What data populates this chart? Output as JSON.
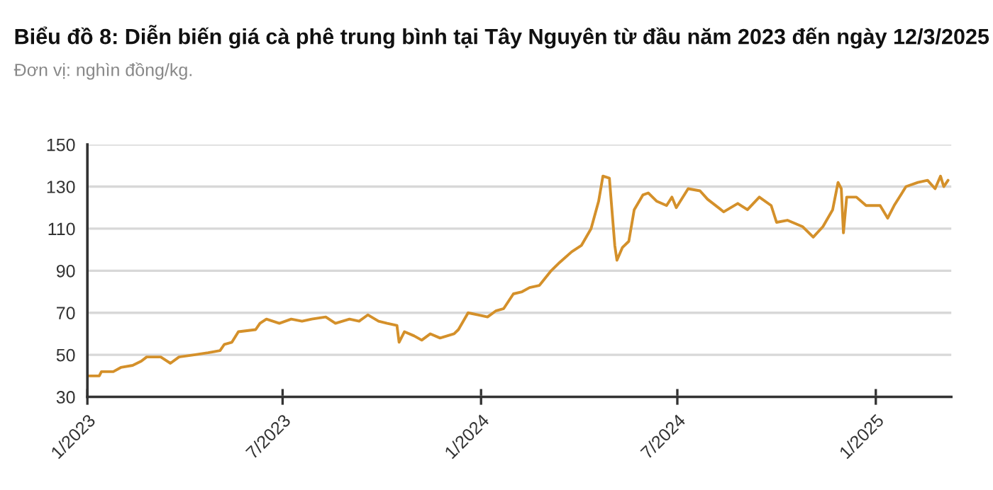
{
  "chart_data": {
    "type": "line",
    "title": "Biểu đồ 8: Diễn biến giá cà phê trung bình tại Tây Nguyên từ đầu năm 2023 đến ngày 12/3/2025",
    "subtitle": "Đơn vị: nghìn đồng/kg.",
    "x": [
      "2023-01-01",
      "2023-01-12",
      "2023-01-14",
      "2023-01-25",
      "2023-02-01",
      "2023-02-12",
      "2023-02-20",
      "2023-02-25",
      "2023-03-10",
      "2023-03-19",
      "2023-03-27",
      "2023-04-10",
      "2023-04-23",
      "2023-05-04",
      "2023-05-08",
      "2023-05-15",
      "2023-05-21",
      "2023-06-06",
      "2023-06-10",
      "2023-06-16",
      "2023-06-28",
      "2023-07-09",
      "2023-07-19",
      "2023-07-28",
      "2023-08-10",
      "2023-08-19",
      "2023-09-01",
      "2023-09-10",
      "2023-09-18",
      "2023-09-28",
      "2023-10-06",
      "2023-10-15",
      "2023-10-17",
      "2023-10-22",
      "2023-10-31",
      "2023-11-07",
      "2023-11-15",
      "2023-11-24",
      "2023-12-07",
      "2023-12-11",
      "2023-12-20",
      "2023-12-29",
      "2024-01-07",
      "2024-01-15",
      "2024-01-22",
      "2024-01-31",
      "2024-02-08",
      "2024-02-15",
      "2024-02-24",
      "2024-03-06",
      "2024-03-14",
      "2024-03-25",
      "2024-04-03",
      "2024-04-12",
      "2024-04-19",
      "2024-04-23",
      "2024-04-29",
      "2024-05-04",
      "2024-05-06",
      "2024-05-11",
      "2024-05-17",
      "2024-05-22",
      "2024-05-30",
      "2024-06-04",
      "2024-06-12",
      "2024-06-21",
      "2024-06-26",
      "2024-06-30",
      "2024-07-11",
      "2024-07-22",
      "2024-07-29",
      "2024-08-13",
      "2024-08-26",
      "2024-09-04",
      "2024-09-15",
      "2024-09-26",
      "2024-10-01",
      "2024-10-11",
      "2024-10-25",
      "2024-11-04",
      "2024-11-13",
      "2024-11-22",
      "2024-11-27",
      "2024-11-30",
      "2024-12-02",
      "2024-12-05",
      "2024-12-14",
      "2024-12-23",
      "2025-01-05",
      "2025-01-12",
      "2025-01-18",
      "2025-01-29",
      "2025-02-09",
      "2025-02-18",
      "2025-02-25",
      "2025-03-02",
      "2025-03-05",
      "2025-03-09"
    ],
    "series": [
      {
        "color": "#d4902a",
        "values": [
          40,
          40,
          42,
          42,
          44,
          45,
          47,
          49,
          49,
          46,
          49,
          50,
          51,
          52,
          55,
          56,
          61,
          62,
          65,
          67,
          65,
          67,
          66,
          67,
          68,
          65,
          67,
          66,
          69,
          66,
          65,
          64,
          56,
          61,
          59,
          57,
          60,
          58,
          60,
          62,
          70,
          69,
          68,
          71,
          72,
          79,
          80,
          82,
          83,
          90,
          94,
          99,
          102,
          110,
          123,
          135,
          134,
          102,
          95,
          101,
          104,
          119,
          126,
          127,
          123,
          121,
          125,
          120,
          129,
          128,
          124,
          118,
          122,
          119,
          125,
          121,
          113,
          114,
          111,
          106,
          111,
          119,
          132,
          129,
          108,
          125,
          125,
          121,
          121,
          115,
          121,
          130,
          132,
          133,
          129,
          135,
          130,
          133
        ]
      }
    ],
    "xlim": [
      "2023-01-01",
      "2025-03-12"
    ],
    "xticks": [
      {
        "value": "2023-01-01",
        "label": "1/2023"
      },
      {
        "value": "2023-07-01",
        "label": "7/2023"
      },
      {
        "value": "2024-01-01",
        "label": "1/2024"
      },
      {
        "value": "2024-07-01",
        "label": "7/2024"
      },
      {
        "value": "2025-01-01",
        "label": "1/2025"
      }
    ],
    "ylim": [
      30,
      150
    ],
    "yticks": [
      30,
      50,
      70,
      90,
      110,
      130,
      150
    ],
    "grid": "y"
  }
}
